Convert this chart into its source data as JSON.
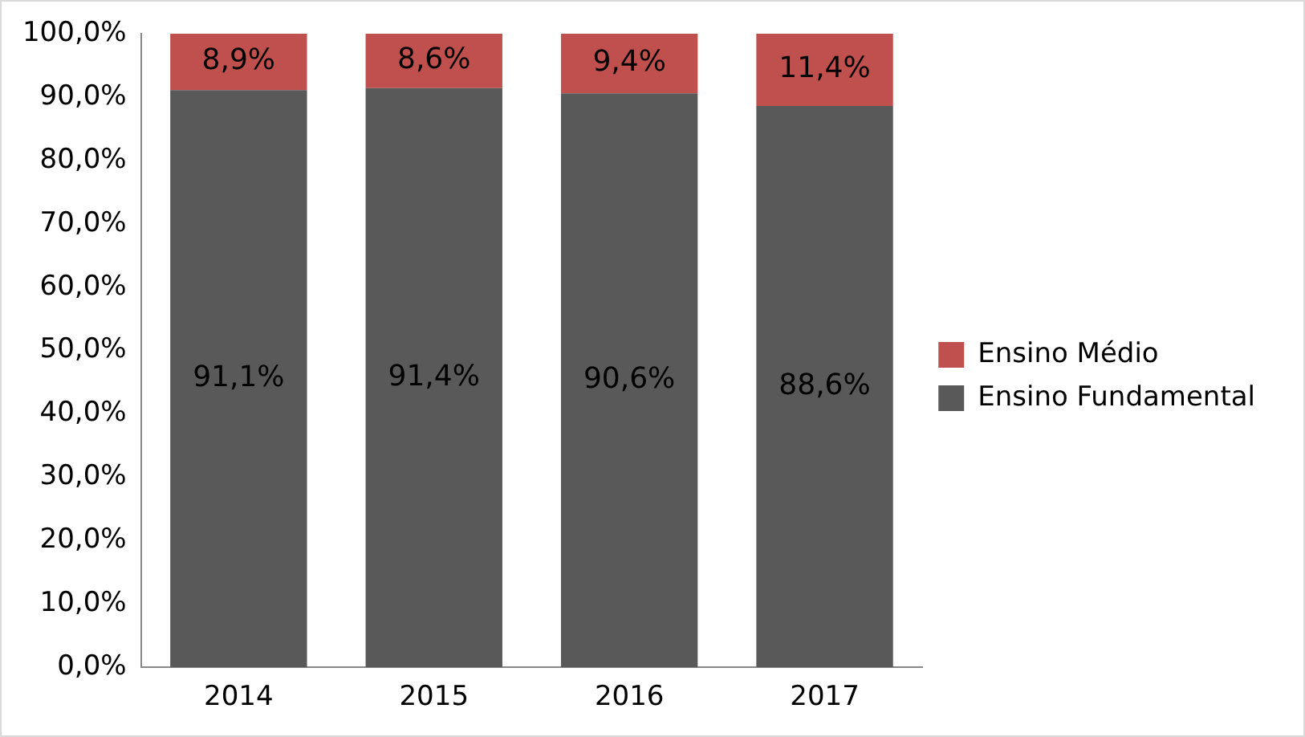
{
  "chart_data": {
    "type": "bar",
    "stacked": true,
    "categories": [
      "2014",
      "2015",
      "2016",
      "2017"
    ],
    "series": [
      {
        "name": "Ensino Fundamental",
        "color": "#595959",
        "values": [
          91.1,
          91.4,
          90.6,
          88.6
        ],
        "value_labels": [
          "91,1%",
          "91,4%",
          "90,6%",
          "88,6%"
        ]
      },
      {
        "name": "Ensino Médio",
        "color": "#c0504d",
        "values": [
          8.9,
          8.6,
          9.4,
          11.4
        ],
        "value_labels": [
          "8,9%",
          "8,6%",
          "9,4%",
          "11,4%"
        ]
      }
    ],
    "ylim": [
      0,
      100
    ],
    "yticks": [
      {
        "value": 0,
        "label": "0,0%"
      },
      {
        "value": 10,
        "label": "10,0%"
      },
      {
        "value": 20,
        "label": "20,0%"
      },
      {
        "value": 30,
        "label": "30,0%"
      },
      {
        "value": 40,
        "label": "40,0%"
      },
      {
        "value": 50,
        "label": "50,0%"
      },
      {
        "value": 60,
        "label": "60,0%"
      },
      {
        "value": 70,
        "label": "70,0%"
      },
      {
        "value": 80,
        "label": "80,0%"
      },
      {
        "value": 90,
        "label": "90,0%"
      },
      {
        "value": 100,
        "label": "100,0%"
      }
    ],
    "grid": false,
    "legend": "right"
  }
}
